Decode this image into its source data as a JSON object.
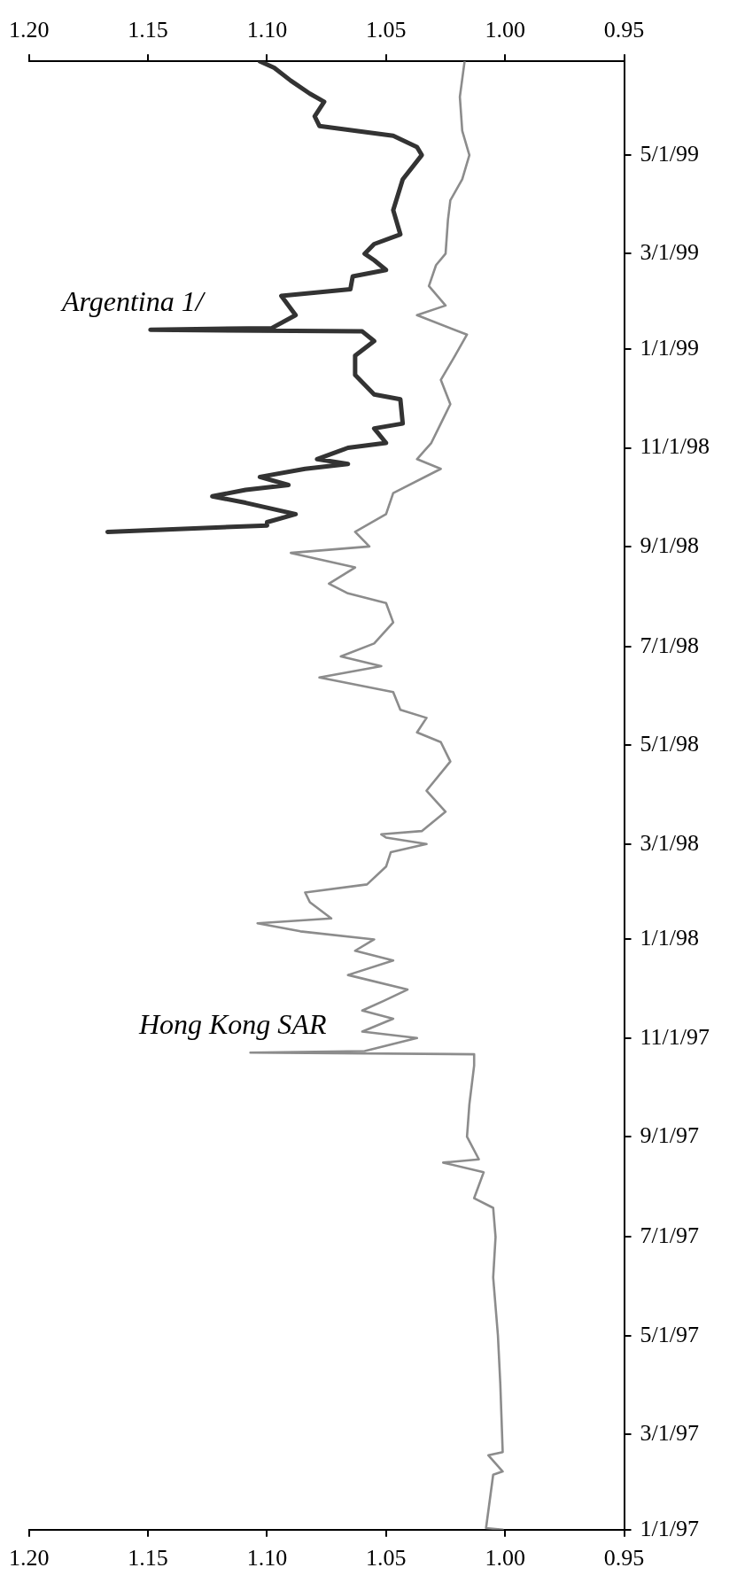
{
  "chart_data": {
    "type": "line",
    "orientation": "horizontal",
    "ylim": [
      "1997-01-01",
      "1999-06-28"
    ],
    "yticks": [
      {
        "value": "1997-01-01",
        "label": "1/1/97"
      },
      {
        "value": "1997-03-01",
        "label": "3/1/97"
      },
      {
        "value": "1997-05-01",
        "label": "5/1/97"
      },
      {
        "value": "1997-07-01",
        "label": "7/1/97"
      },
      {
        "value": "1997-09-01",
        "label": "9/1/97"
      },
      {
        "value": "1997-11-01",
        "label": "11/1/97"
      },
      {
        "value": "1998-01-01",
        "label": "1/1/98"
      },
      {
        "value": "1998-03-01",
        "label": "3/1/98"
      },
      {
        "value": "1998-05-01",
        "label": "5/1/98"
      },
      {
        "value": "1998-07-01",
        "label": "7/1/98"
      },
      {
        "value": "1998-09-01",
        "label": "9/1/98"
      },
      {
        "value": "1998-11-01",
        "label": "11/1/98"
      },
      {
        "value": "1999-01-01",
        "label": "1/1/99"
      },
      {
        "value": "1999-03-01",
        "label": "3/1/99"
      },
      {
        "value": "1999-05-01",
        "label": "5/1/99"
      }
    ],
    "xlim": [
      1.2,
      0.95
    ],
    "xticks": [
      {
        "value": 1.2,
        "label": "1.20"
      },
      {
        "value": 1.15,
        "label": "1.15"
      },
      {
        "value": 1.1,
        "label": "1.10"
      },
      {
        "value": 1.05,
        "label": "1.05"
      },
      {
        "value": 1.0,
        "label": "1.00"
      },
      {
        "value": 0.95,
        "label": "0.95"
      }
    ],
    "x2lim": [
      1.2,
      0.95
    ],
    "x2ticks": [
      {
        "value": 1.2,
        "label": "1.20"
      },
      {
        "value": 1.15,
        "label": "1.15"
      },
      {
        "value": 1.1,
        "label": "1.10"
      },
      {
        "value": 1.05,
        "label": "1.05"
      },
      {
        "value": 1.0,
        "label": "1.00"
      },
      {
        "value": 0.95,
        "label": "0.95"
      }
    ],
    "grid": false,
    "legend": false,
    "marker": "none",
    "line_style": "solid",
    "series": [
      {
        "name": "Hong Kong SAR",
        "color": "#8c8c8c",
        "x": [
          "1997-01-01",
          "1997-01-02",
          "1997-02-04",
          "1997-02-06",
          "1997-02-16",
          "1997-02-18",
          "1997-04-01",
          "1997-05-01",
          "1997-06-06",
          "1997-07-01",
          "1997-07-19",
          "1997-07-25",
          "1997-08-10",
          "1997-08-16",
          "1997-08-18",
          "1997-09-01",
          "1997-09-21",
          "1997-10-15",
          "1997-10-22",
          "1997-10-23",
          "1997-10-24",
          "1997-11-01",
          "1997-11-05",
          "1997-11-13",
          "1997-11-18",
          "1997-11-24",
          "1997-12-01",
          "1997-12-10",
          "1997-12-19",
          "1997-12-25",
          "1998-01-01",
          "1998-01-06",
          "1998-01-11",
          "1998-01-14",
          "1998-01-24",
          "1998-01-30",
          "1998-02-04",
          "1998-02-15",
          "1998-02-24",
          "1998-03-01",
          "1998-03-05",
          "1998-03-07",
          "1998-03-09",
          "1998-03-21",
          "1998-04-03",
          "1998-04-21",
          "1998-05-03",
          "1998-05-09",
          "1998-05-18",
          "1998-05-23",
          "1998-06-03",
          "1998-06-12",
          "1998-06-19",
          "1998-06-25",
          "1998-07-03",
          "1998-07-16",
          "1998-07-28",
          "1998-08-03",
          "1998-08-09",
          "1998-08-19",
          "1998-08-28",
          "1998-09-01",
          "1998-09-10",
          "1998-09-21",
          "1998-10-04",
          "1998-10-19",
          "1998-10-25",
          "1998-11-04",
          "1998-11-16",
          "1998-11-28",
          "1998-12-13",
          "1998-12-28",
          "1999-01-10",
          "1999-01-22",
          "1999-01-28",
          "1999-02-09",
          "1999-02-22",
          "1999-03-01",
          "1999-03-22",
          "1999-04-03",
          "1999-04-16",
          "1999-05-01",
          "1999-05-16",
          "1999-06-06",
          "1999-06-28"
        ],
        "values": [
          1.001,
          1.008,
          1.005,
          1.001,
          1.007,
          1.001,
          1.002,
          1.003,
          1.005,
          1.004,
          1.005,
          1.013,
          1.009,
          1.026,
          1.011,
          1.016,
          1.015,
          1.013,
          1.013,
          1.107,
          1.059,
          1.037,
          1.06,
          1.047,
          1.06,
          1.051,
          1.041,
          1.066,
          1.047,
          1.063,
          1.055,
          1.086,
          1.104,
          1.073,
          1.082,
          1.084,
          1.058,
          1.05,
          1.048,
          1.033,
          1.05,
          1.052,
          1.035,
          1.025,
          1.033,
          1.023,
          1.027,
          1.037,
          1.033,
          1.044,
          1.047,
          1.078,
          1.052,
          1.069,
          1.055,
          1.047,
          1.05,
          1.066,
          1.074,
          1.063,
          1.09,
          1.057,
          1.063,
          1.05,
          1.047,
          1.027,
          1.037,
          1.031,
          1.027,
          1.023,
          1.027,
          1.021,
          1.016,
          1.037,
          1.025,
          1.032,
          1.029,
          1.025,
          1.024,
          1.023,
          1.018,
          1.015,
          1.018,
          1.019,
          1.017
        ]
      },
      {
        "name": "Argentina 1/",
        "color": "#333333",
        "x": [
          "1998-09-10",
          "1998-09-14",
          "1998-09-16",
          "1998-09-21",
          "1998-09-28",
          "1998-10-02",
          "1998-10-06",
          "1998-10-09",
          "1998-10-14",
          "1998-10-19",
          "1998-10-22",
          "1998-10-25",
          "1998-11-01",
          "1998-11-04",
          "1998-11-13",
          "1998-11-16",
          "1998-12-01",
          "1998-12-04",
          "1998-12-16",
          "1998-12-28",
          "1999-01-06",
          "1999-01-12",
          "1999-01-13",
          "1999-01-14",
          "1999-01-22",
          "1999-02-03",
          "1999-02-07",
          "1999-02-15",
          "1999-02-19",
          "1999-02-25",
          "1999-03-01",
          "1999-03-07",
          "1999-03-13",
          "1999-03-28",
          "1999-04-16",
          "1999-05-01",
          "1999-05-06",
          "1999-05-13",
          "1999-05-19",
          "1999-05-25",
          "1999-06-03",
          "1999-06-08",
          "1999-06-16",
          "1999-06-24",
          "1999-06-28"
        ],
        "values": [
          1.167,
          1.1,
          1.1,
          1.088,
          1.109,
          1.123,
          1.109,
          1.091,
          1.103,
          1.084,
          1.066,
          1.079,
          1.066,
          1.05,
          1.055,
          1.043,
          1.044,
          1.055,
          1.063,
          1.063,
          1.055,
          1.06,
          1.149,
          1.098,
          1.088,
          1.094,
          1.065,
          1.064,
          1.05,
          1.055,
          1.059,
          1.055,
          1.044,
          1.047,
          1.043,
          1.035,
          1.037,
          1.047,
          1.078,
          1.08,
          1.076,
          1.082,
          1.09,
          1.097,
          1.103
        ]
      }
    ]
  }
}
